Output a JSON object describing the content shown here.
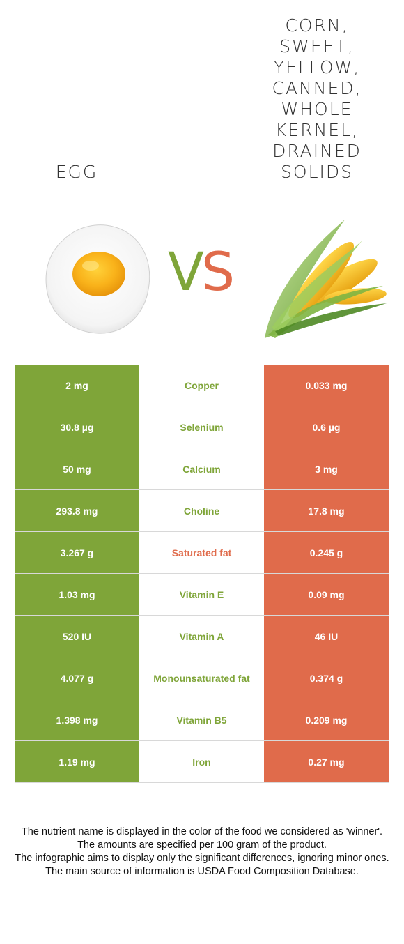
{
  "header": {
    "left_food": "Egg",
    "right_food": "Corn, sweet, yellow, canned, whole kernel, drained solids",
    "vs_v": "V",
    "vs_s": "S"
  },
  "colors": {
    "left": "#7fa539",
    "right": "#e06b4b"
  },
  "images": {
    "left": "fried-egg-image",
    "right": "corn-cob-image"
  },
  "rows": [
    {
      "left": "2 mg",
      "nutrient": "Copper",
      "right": "0.033 mg",
      "winner": "left"
    },
    {
      "left": "30.8 µg",
      "nutrient": "Selenium",
      "right": "0.6 µg",
      "winner": "left"
    },
    {
      "left": "50 mg",
      "nutrient": "Calcium",
      "right": "3 mg",
      "winner": "left"
    },
    {
      "left": "293.8 mg",
      "nutrient": "Choline",
      "right": "17.8 mg",
      "winner": "left"
    },
    {
      "left": "3.267 g",
      "nutrient": "Saturated fat",
      "right": "0.245 g",
      "winner": "right"
    },
    {
      "left": "1.03 mg",
      "nutrient": "Vitamin E",
      "right": "0.09 mg",
      "winner": "left"
    },
    {
      "left": "520 IU",
      "nutrient": "Vitamin A",
      "right": "46 IU",
      "winner": "left"
    },
    {
      "left": "4.077 g",
      "nutrient": "Monounsaturated fat",
      "right": "0.374 g",
      "winner": "left"
    },
    {
      "left": "1.398 mg",
      "nutrient": "Vitamin B5",
      "right": "0.209 mg",
      "winner": "left"
    },
    {
      "left": "1.19 mg",
      "nutrient": "Iron",
      "right": "0.27 mg",
      "winner": "left"
    }
  ],
  "footer": {
    "line1": "The nutrient name is displayed in the color of the food we considered as 'winner'.",
    "line2": "The amounts are specified per 100 gram of the product.",
    "line3": "The infographic aims to display only the significant differences, ignoring minor ones.",
    "line4": "The main source of information is USDA Food Composition Database."
  }
}
